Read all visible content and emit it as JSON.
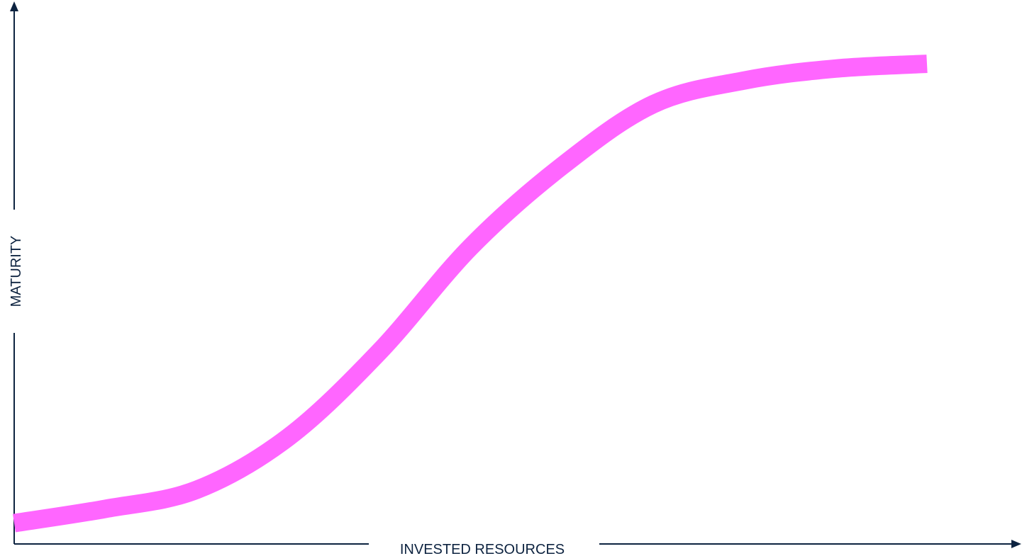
{
  "chart_data": {
    "type": "line",
    "xlabel": "INVESTED RESOURCES",
    "ylabel": "MATURITY",
    "grid": false,
    "legend": "none",
    "series": [
      {
        "x": [
          0,
          0.1,
          0.2,
          0.3,
          0.4,
          0.5,
          0.6,
          0.7,
          0.8,
          0.9,
          1.0
        ],
        "y": [
          0.02,
          0.05,
          0.09,
          0.2,
          0.38,
          0.6,
          0.77,
          0.9,
          0.95,
          0.975,
          0.985
        ]
      }
    ],
    "xlim": [
      0,
      1
    ],
    "ylim": [
      0,
      1
    ],
    "colors": {
      "curve": "#ff66ff",
      "axis": "#0d2340"
    }
  }
}
